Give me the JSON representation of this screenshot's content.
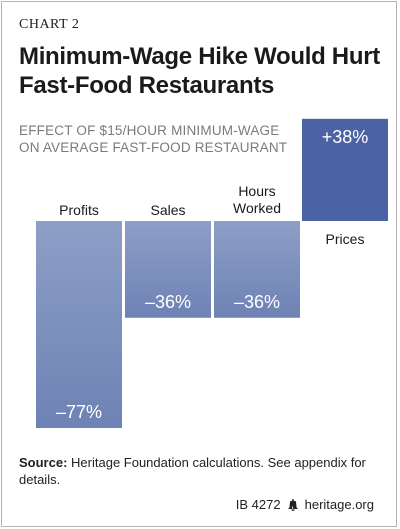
{
  "header": {
    "chart_number": "CHART 2",
    "title": "Minimum-Wage Hike Would Hurt Fast-Food Restaurants",
    "subtitle": "EFFECT OF $15/HOUR MINIMUM-WAGE ON AVERAGE FAST-FOOD RESTAURANT"
  },
  "source": {
    "label": "Source:",
    "text": "Heritage Foundation calculations. See appendix for details."
  },
  "footer": {
    "id": "IB 4272",
    "site": "heritage.org",
    "icon": "liberty-bell-icon"
  },
  "colors": {
    "bar_negative_top": "#8d9fc7",
    "bar_negative_bottom": "#6e82b4",
    "bar_positive": "#4b63a4",
    "label_text": "#ffffff",
    "category_text": "#1a1a1a"
  },
  "chart_data": {
    "type": "bar",
    "categories": [
      "Profits",
      "Sales",
      "Hours Worked",
      "Prices"
    ],
    "values": [
      -77,
      -36,
      -36,
      38
    ],
    "value_labels": [
      "–77%",
      "–36%",
      "–36%",
      "+38%"
    ],
    "unit": "%",
    "title": "Minimum-Wage Hike Would Hurt Fast-Food Restaurants",
    "xlabel": "",
    "ylabel": "",
    "ylim": [
      -77,
      38
    ],
    "grid": false,
    "legend": "none"
  }
}
